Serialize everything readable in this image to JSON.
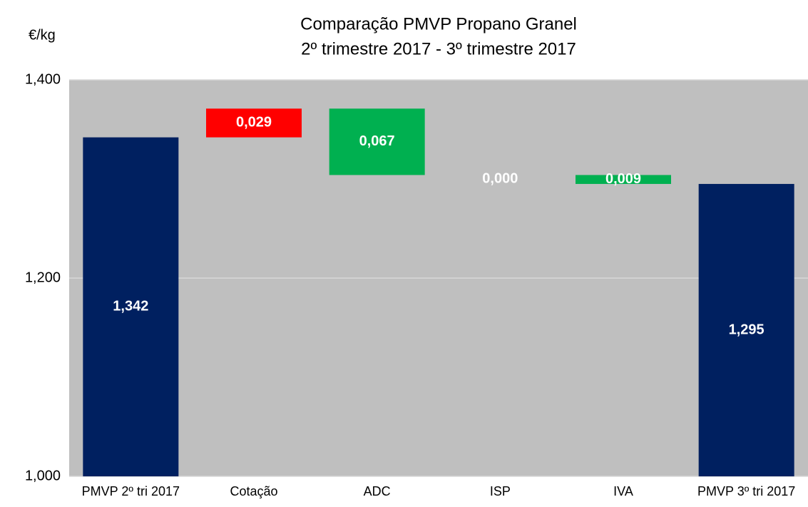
{
  "chart_data": {
    "type": "waterfall",
    "title": "Comparação PMVP Propano Granel",
    "subtitle": "2º trimestre 2017 - 3º trimestre 2017",
    "y_label": "€/kg",
    "categories": [
      "PMVP 2º tri 2017",
      "Cotação",
      "ADC",
      "ISP",
      "IVA",
      "PMVP 3º tri 2017"
    ],
    "values": [
      1.342,
      0.029,
      -0.067,
      0.0,
      -0.009,
      1.295
    ],
    "value_labels": [
      "1,342",
      "0,029",
      "0,067",
      "0,000",
      "0,009",
      "1,295"
    ],
    "colors": [
      "#002060",
      "#ff0000",
      "#00b050",
      "#00b050",
      "#00b050",
      "#002060"
    ],
    "ylim": [
      1.0,
      1.4
    ],
    "yticks": [
      {
        "value": 1.0,
        "label": "1,000"
      },
      {
        "value": 1.2,
        "label": "1,200"
      },
      {
        "value": 1.4,
        "label": "1,400"
      }
    ],
    "grid": true
  }
}
